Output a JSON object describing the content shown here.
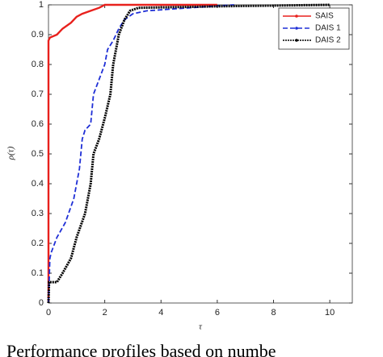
{
  "chart_data": {
    "type": "line",
    "xlabel": "τ",
    "ylabel": "ρ(τ)",
    "caption": "Performance profiles based on numbe",
    "xlim": [
      0,
      10.8
    ],
    "ylim": [
      0,
      1
    ],
    "xticks": [
      0,
      2,
      4,
      6,
      8,
      10
    ],
    "yticks": [
      0,
      0.1,
      0.2,
      0.3,
      0.4,
      0.5,
      0.6,
      0.7,
      0.8,
      0.9,
      1
    ],
    "legend": "upper right",
    "series": [
      {
        "name": "SAIS",
        "color": "#e8211d",
        "dash": "solid",
        "x": [
          0,
          0,
          0.05,
          0.3,
          0.5,
          0.8,
          1.0,
          1.2,
          1.5,
          1.8,
          2.0,
          6
        ],
        "values": [
          0,
          0.88,
          0.89,
          0.9,
          0.92,
          0.94,
          0.96,
          0.97,
          0.98,
          0.99,
          1,
          1
        ]
      },
      {
        "name": "DAIS 1",
        "color": "#1f2fd6",
        "dash": "dashed",
        "x": [
          0,
          0.05,
          0.1,
          0.3,
          0.6,
          0.9,
          1.1,
          1.2,
          1.3,
          1.5,
          1.6,
          1.8,
          2.0,
          2.1,
          2.3,
          2.5,
          2.7,
          3.0,
          3.5,
          5,
          6.6
        ],
        "values": [
          0,
          0.15,
          0.17,
          0.22,
          0.27,
          0.35,
          0.45,
          0.55,
          0.58,
          0.6,
          0.7,
          0.75,
          0.8,
          0.85,
          0.88,
          0.92,
          0.95,
          0.97,
          0.98,
          0.99,
          1
        ]
      },
      {
        "name": "DAIS 2",
        "color": "#000000",
        "dash": "dotted",
        "x": [
          0,
          0.02,
          0.3,
          0.5,
          0.8,
          1.0,
          1.3,
          1.5,
          1.6,
          1.8,
          2.0,
          2.2,
          2.3,
          2.5,
          2.7,
          2.9,
          3.2,
          6,
          10
        ],
        "values": [
          0,
          0.07,
          0.07,
          0.1,
          0.15,
          0.22,
          0.3,
          0.4,
          0.5,
          0.55,
          0.62,
          0.7,
          0.8,
          0.9,
          0.95,
          0.98,
          0.99,
          0.995,
          1
        ]
      }
    ]
  }
}
